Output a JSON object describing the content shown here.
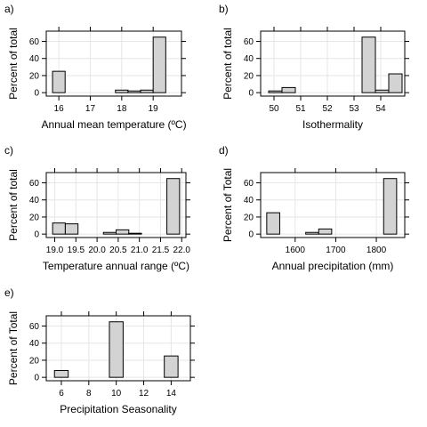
{
  "figure": {
    "background": "#ffffff",
    "bar_fill": "#d3d3d3",
    "bar_stroke": "#000000",
    "grid_color": "#e6e6e6"
  },
  "chart_data": [
    {
      "letter": "a)",
      "type": "bar",
      "xlabel": "Annual mean temperature (ºC)",
      "ylabel": "Percent of total",
      "xlim": [
        15.6,
        19.9
      ],
      "ylim": [
        -4,
        72
      ],
      "xticks": [
        16,
        17,
        18,
        19
      ],
      "xtick_labels": [
        "16",
        "17",
        "18",
        "19"
      ],
      "yticks": [
        0,
        20,
        40,
        60
      ],
      "ytick_labels": [
        "0",
        "20",
        "40",
        "60"
      ],
      "grid": true,
      "bins": [
        [
          15.8,
          16.2,
          25
        ],
        [
          16.2,
          16.6,
          0
        ],
        [
          16.6,
          17.0,
          0
        ],
        [
          17.0,
          17.4,
          0
        ],
        [
          17.4,
          17.8,
          0
        ],
        [
          17.8,
          18.2,
          3
        ],
        [
          18.2,
          18.6,
          2
        ],
        [
          18.6,
          19.0,
          3
        ],
        [
          19.0,
          19.4,
          65
        ]
      ]
    },
    {
      "letter": "b)",
      "type": "bar",
      "xlabel": "Isothermality",
      "ylabel": "Percent of total",
      "xlim": [
        49.5,
        54.9
      ],
      "ylim": [
        -4,
        72
      ],
      "xticks": [
        50,
        51,
        52,
        53,
        54
      ],
      "xtick_labels": [
        "50",
        "51",
        "52",
        "53",
        "54"
      ],
      "grid": true,
      "yticks": [
        0,
        20,
        40,
        60
      ],
      "ytick_labels": [
        "0",
        "20",
        "40",
        "60"
      ],
      "bins": [
        [
          49.8,
          50.3,
          2
        ],
        [
          50.3,
          50.8,
          6
        ],
        [
          50.8,
          51.3,
          0
        ],
        [
          51.3,
          51.8,
          0
        ],
        [
          51.8,
          52.3,
          0
        ],
        [
          52.3,
          52.8,
          0
        ],
        [
          52.8,
          53.3,
          0
        ],
        [
          53.3,
          53.8,
          65
        ],
        [
          53.8,
          54.3,
          3
        ],
        [
          54.3,
          54.8,
          22
        ]
      ]
    },
    {
      "letter": "c)",
      "type": "bar",
      "xlabel": "Temperature annual range (ºC)",
      "ylabel": "Percent of total",
      "xlim": [
        18.8,
        22.1
      ],
      "ylim": [
        -4,
        72
      ],
      "xticks": [
        19.0,
        19.5,
        20.0,
        20.5,
        21.0,
        21.5,
        22.0
      ],
      "xtick_labels": [
        "19.0",
        "19.5",
        "20.0",
        "20.5",
        "21.0",
        "21.5",
        "22.0"
      ],
      "grid": true,
      "yticks": [
        0,
        20,
        40,
        60
      ],
      "ytick_labels": [
        "0",
        "20",
        "40",
        "60"
      ],
      "bins": [
        [
          18.95,
          19.25,
          13
        ],
        [
          19.25,
          19.55,
          12
        ],
        [
          19.55,
          19.85,
          0
        ],
        [
          19.85,
          20.15,
          0
        ],
        [
          20.15,
          20.45,
          2
        ],
        [
          20.45,
          20.75,
          5
        ],
        [
          20.75,
          21.05,
          1
        ],
        [
          21.05,
          21.35,
          0
        ],
        [
          21.35,
          21.65,
          0
        ],
        [
          21.65,
          21.95,
          65
        ]
      ]
    },
    {
      "letter": "d)",
      "type": "bar",
      "xlabel": "Annual precipitation (mm)",
      "ylabel": "Percent of Total",
      "xlim": [
        1515,
        1870
      ],
      "ylim": [
        -4,
        72
      ],
      "xticks": [
        1600,
        1700,
        1800
      ],
      "xtick_labels": [
        "1600",
        "1700",
        "1800"
      ],
      "grid": true,
      "yticks": [
        0,
        20,
        40,
        60
      ],
      "ytick_labels": [
        "0",
        "20",
        "40",
        "60"
      ],
      "bins": [
        [
          1530,
          1562,
          25
        ],
        [
          1562,
          1594,
          0
        ],
        [
          1594,
          1626,
          0
        ],
        [
          1626,
          1658,
          2
        ],
        [
          1658,
          1690,
          6
        ],
        [
          1690,
          1722,
          0
        ],
        [
          1722,
          1754,
          0
        ],
        [
          1754,
          1786,
          0
        ],
        [
          1786,
          1818,
          0
        ],
        [
          1818,
          1850,
          65
        ]
      ]
    },
    {
      "letter": "e)",
      "type": "bar",
      "xlabel": "Precipitation Seasonality",
      "ylabel": "Percent of Total",
      "xlim": [
        4.9,
        15.4
      ],
      "ylim": [
        -4,
        72
      ],
      "xticks": [
        6,
        8,
        10,
        12,
        14
      ],
      "xtick_labels": [
        "6",
        "8",
        "10",
        "12",
        "14"
      ],
      "grid": true,
      "yticks": [
        0,
        20,
        40,
        60
      ],
      "ytick_labels": [
        "0",
        "20",
        "40",
        "60"
      ],
      "bins": [
        [
          5.5,
          6.5,
          8
        ],
        [
          6.5,
          7.5,
          0
        ],
        [
          7.5,
          8.5,
          0
        ],
        [
          8.5,
          9.5,
          0
        ],
        [
          9.5,
          10.5,
          65
        ],
        [
          10.5,
          11.5,
          0
        ],
        [
          11.5,
          12.5,
          0
        ],
        [
          12.5,
          13.5,
          0
        ],
        [
          13.5,
          14.5,
          25
        ]
      ]
    }
  ]
}
